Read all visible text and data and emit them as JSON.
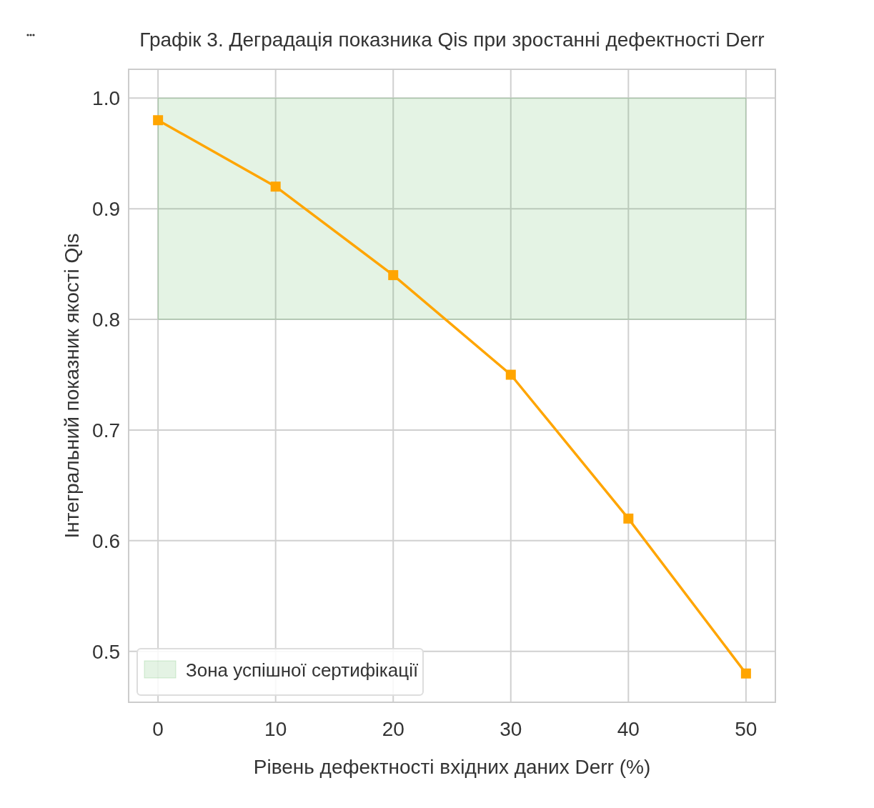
{
  "chart_data": {
    "type": "line",
    "title": "Графік 3. Деградація показника Qis при зростанні дефектності Derr",
    "xlabel": "Рівень дефектності вхідних даних Derr (%)",
    "ylabel": "Інтегральний показник якості Qis",
    "x": [
      0,
      10,
      20,
      30,
      40,
      50
    ],
    "series": [
      {
        "color": "#ffa500",
        "values": [
          0.98,
          0.92,
          0.84,
          0.75,
          0.62,
          0.48
        ]
      }
    ],
    "bands": [
      {
        "axis": "y",
        "from": 0.8,
        "to": 1.0,
        "label": "Зона успішної сертифікації",
        "color": "#2ca02c"
      }
    ],
    "xlim": [
      -2.5,
      52.5
    ],
    "xticks": [
      0,
      10,
      20,
      30,
      40,
      50
    ],
    "ylim": [
      0.454,
      1.026
    ],
    "yticks": [
      0.5,
      0.6,
      0.7,
      0.8,
      0.9,
      {
        "value": 1,
        "label": "1.0"
      }
    ],
    "grid": true,
    "legend": "bottom left",
    "marker": "square",
    "line_style": "solid"
  }
}
